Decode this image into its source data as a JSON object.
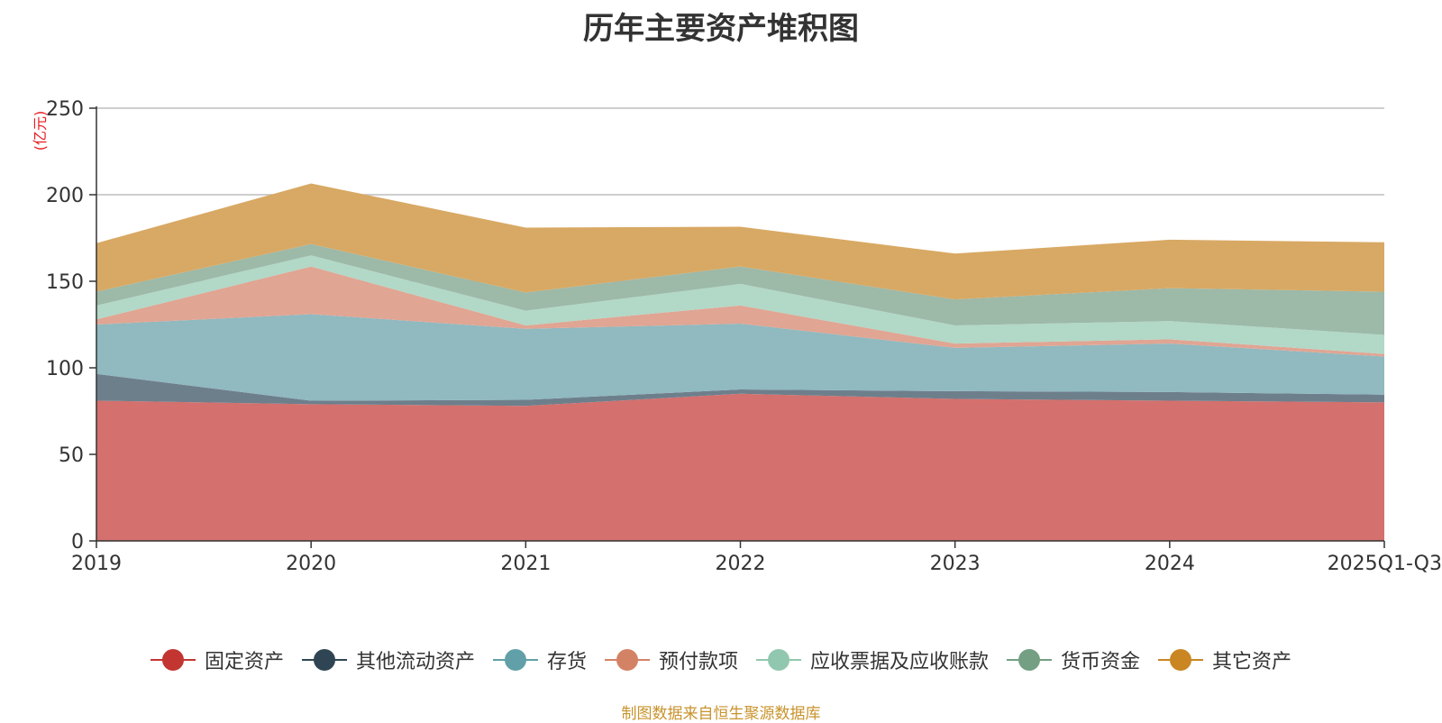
{
  "chart_data": {
    "type": "area",
    "stacked": true,
    "title": "历年主要资产堆积图",
    "ylabel": "(亿元)",
    "xlabel": "",
    "ylim": [
      0,
      250
    ],
    "yticks": [
      0,
      50,
      100,
      150,
      200,
      250
    ],
    "categories": [
      "2019",
      "2020",
      "2021",
      "2022",
      "2023",
      "2024",
      "2025Q1-Q3"
    ],
    "grid": true,
    "legend_position": "bottom",
    "series": [
      {
        "name": "固定资产",
        "color": "#c23531",
        "area_color": "#d4706d",
        "values": [
          81,
          79,
          78,
          85,
          82,
          81,
          80
        ]
      },
      {
        "name": "其他流动资产",
        "color": "#2f4554",
        "area_color": "#6e7f8c",
        "values": [
          15.5,
          2,
          3.5,
          2.5,
          4.5,
          5,
          4.5
        ]
      },
      {
        "name": "存货",
        "color": "#61a0a8",
        "area_color": "#90b9c0",
        "values": [
          28.5,
          50,
          41,
          38,
          25,
          28,
          22
        ]
      },
      {
        "name": "预付款项",
        "color": "#d48265",
        "area_color": "#e0a593",
        "values": [
          3,
          27.5,
          2,
          10.5,
          2.5,
          2.5,
          1.5
        ]
      },
      {
        "name": "应收票据及应收账款",
        "color": "#91c7ae",
        "area_color": "#b2d8c7",
        "values": [
          8,
          6.5,
          8.5,
          12.5,
          10.5,
          10.5,
          11
        ]
      },
      {
        "name": "货币资金",
        "color": "#749f83",
        "area_color": "#9db9a8",
        "values": [
          8,
          6.5,
          10.5,
          10,
          15,
          19,
          25
        ]
      },
      {
        "name": "其它资产",
        "color": "#ca8622",
        "area_color": "#d8a964",
        "values": [
          28,
          35,
          37.5,
          23,
          26.5,
          28,
          28.5
        ]
      }
    ]
  },
  "footer": {
    "source_note": "制图数据来自恒生聚源数据库"
  }
}
